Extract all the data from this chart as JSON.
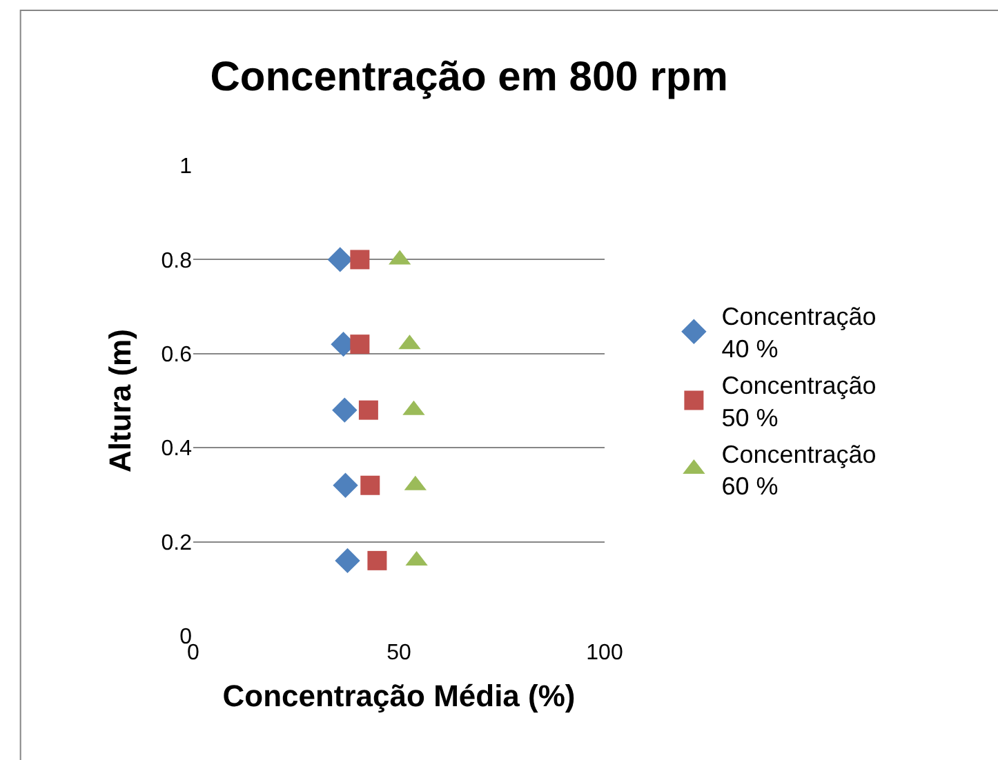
{
  "chart_data": {
    "type": "scatter",
    "title": "Concentração em 800 rpm",
    "xlabel": "Concentração Média (%)",
    "ylabel": "Altura (m)",
    "xlim": [
      0,
      100
    ],
    "xticks": [
      0,
      50,
      100
    ],
    "ylim": [
      0,
      1
    ],
    "yticks": [
      0,
      0.2,
      0.4,
      0.6,
      0.8,
      1
    ],
    "grid": "y",
    "legend": "right",
    "series": [
      {
        "name": "Concentração 40 %",
        "color": "#4f81bd",
        "marker": "diamond",
        "x": [
          37.5,
          37,
          36.8,
          36.5,
          35.7
        ],
        "values": [
          0.16,
          0.32,
          0.48,
          0.62,
          0.8
        ]
      },
      {
        "name": "Concentração 50 %",
        "color": "#c0504d",
        "marker": "square",
        "x": [
          44.7,
          43,
          42.6,
          40.5,
          40.5
        ],
        "values": [
          0.16,
          0.32,
          0.48,
          0.62,
          0.8
        ]
      },
      {
        "name": "Concentração 60 %",
        "color": "#9bbb59",
        "marker": "triangle",
        "x": [
          54.3,
          54,
          53.6,
          52.6,
          50.2
        ],
        "values": [
          0.16,
          0.32,
          0.48,
          0.62,
          0.8
        ]
      }
    ]
  }
}
